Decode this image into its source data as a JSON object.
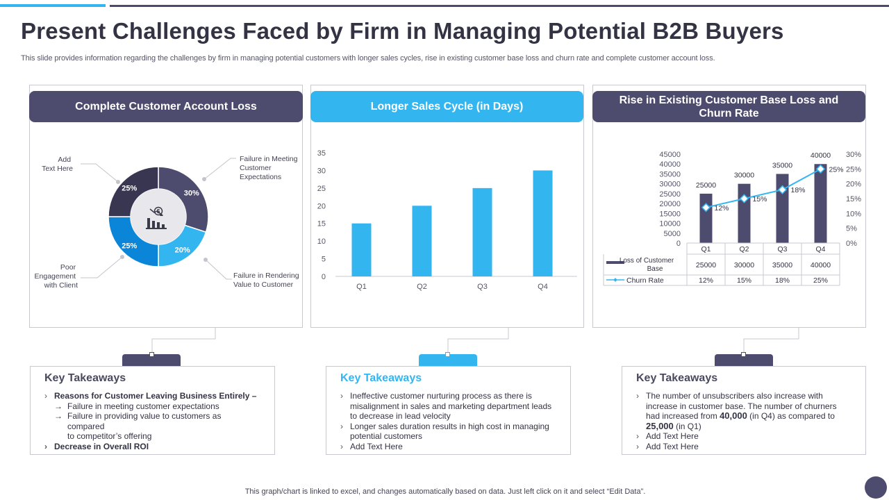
{
  "title": "Present Challenges Faced by Firm in Managing Potential B2B Buyers",
  "subtitle": "This slide provides information regarding the challenges by firm in managing potential customers with longer sales cycles, rise in existing customer base loss and churn rate and complete customer account loss.",
  "panels": [
    {
      "header": "Complete Customer Account Loss"
    },
    {
      "header": "Longer Sales Cycle (in Days)"
    },
    {
      "header": "Rise in Existing Customer Base Loss and Churn Rate"
    }
  ],
  "colors": {
    "dark": "#4e4c6e",
    "blue": "#33b5f0",
    "navy": "#383650",
    "deep_blue": "#0a85d8",
    "grey": "#b8b8c2"
  },
  "icons": {
    "center": "money-down-chart-icon"
  },
  "chart_data": [
    {
      "type": "pie",
      "variant": "donut",
      "title": "Complete Customer Account Loss",
      "slices": [
        {
          "label": "Failure in Meeting Customer Expectations",
          "value": 30,
          "display": "30%"
        },
        {
          "label": "Failure in Rendering Value to Customer",
          "value": 20,
          "display": "20%"
        },
        {
          "label": "Poor Engagement with Client",
          "value": 25,
          "display": "25%"
        },
        {
          "label": "Add Text Here",
          "value": 25,
          "display": "25%"
        }
      ],
      "callouts": {
        "top_right": [
          "Failure in Meeting",
          "Customer",
          "Expectations"
        ],
        "bottom_right": [
          "Failure in Rendering",
          "Value to Customer"
        ],
        "bottom_left": [
          "Poor",
          "Engagement",
          "with Client"
        ],
        "top_left": [
          "Add",
          "Text Here"
        ]
      }
    },
    {
      "type": "bar",
      "title": "Longer Sales Cycle (in Days)",
      "categories": [
        "Q1",
        "Q2",
        "Q3",
        "Q4"
      ],
      "values": [
        15,
        20,
        25,
        30
      ],
      "ylim": [
        0,
        35
      ],
      "yticks": [
        0,
        5,
        10,
        15,
        20,
        25,
        30,
        35
      ],
      "grid": false
    },
    {
      "type": "bar",
      "title": "Rise in Existing Customer Base Loss and Churn Rate",
      "categories": [
        "Q1",
        "Q2",
        "Q3",
        "Q4"
      ],
      "series": [
        {
          "name": "Loss of Customer Base",
          "type": "bar",
          "values": [
            25000,
            30000,
            35000,
            40000
          ],
          "labels": [
            "25000",
            "30000",
            "35000",
            "40000"
          ]
        },
        {
          "name": "Churn Rate",
          "type": "line",
          "axis": "secondary",
          "values": [
            12,
            15,
            18,
            25
          ],
          "labels": [
            "12%",
            "15%",
            "18%",
            "25%"
          ]
        }
      ],
      "ylim": [
        0,
        45000
      ],
      "yticks": [
        "0",
        "5000",
        "10000",
        "15000",
        "20000",
        "25000",
        "30000",
        "35000",
        "40000",
        "45000"
      ],
      "y2lim": [
        0,
        30
      ],
      "y2ticks": [
        "0%",
        "5%",
        "10%",
        "15%",
        "20%",
        "25%",
        "30%"
      ],
      "table": {
        "row1_label": [
          "Loss of Customer",
          "Base"
        ],
        "row2_label": "Churn Rate"
      }
    }
  ],
  "takeaways": [
    {
      "title": "Key Takeaways",
      "item1": "Reasons for Customer Leaving Business Entirely –",
      "sub1": "Failure in meeting customer expectations",
      "sub2a": "Failure in providing value to customers as compared",
      "sub2b": "to competitor’s offering",
      "item2": "Decrease in Overall ROI"
    },
    {
      "title": "Key Takeaways",
      "item1": "Ineffective customer nurturing process as there is misalignment in sales and marketing department leads to decrease in lead velocity",
      "item2": "Longer sales duration results in high cost in managing potential customers",
      "item3": "Add Text Here"
    },
    {
      "title": "Key Takeaways",
      "item1_a": "The number of unsubscribers also increase with increase in customer base. The number of churners had increased from ",
      "item1_b": "40,000",
      "item1_c": " (in Q4) as compared to ",
      "item1_d": "25,000",
      "item1_e": " (in Q1)",
      "item2": "Add Text Here",
      "item3": "Add Text Here"
    }
  ],
  "footer": "This graph/chart is linked to excel,  and changes automatically based on data. Just left click on it and select “Edit Data”."
}
